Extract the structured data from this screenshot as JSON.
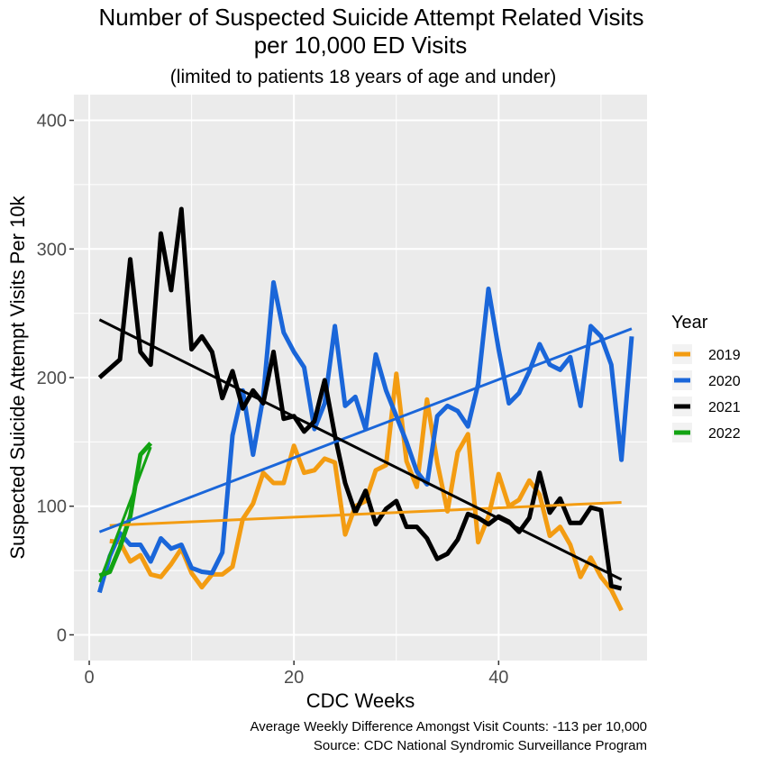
{
  "chart_data": {
    "type": "line",
    "title_line1": "Number of Suspected Suicide Attempt Related Visits",
    "title_line2": "per 10,000 ED Visits",
    "subtitle": "(limited to patients 18 years of age and under)",
    "xlabel": "CDC Weeks",
    "ylabel": "Suspected Suicide Attempt Visits Per 10k",
    "xlim": [
      -1.5,
      54.5
    ],
    "ylim": [
      -20,
      420
    ],
    "x_ticks": [
      0,
      20,
      40
    ],
    "y_ticks": [
      0,
      100,
      200,
      300,
      400
    ],
    "x_tick_labels": [
      "0",
      "20",
      "40"
    ],
    "y_tick_labels": [
      "0",
      "100",
      "200",
      "300",
      "400"
    ],
    "grid": true,
    "legend_title": "Year",
    "legend_position": "right",
    "caption_line1": "Average Weekly Difference Amongst Visit Counts: -113 per 10,000",
    "caption_line2": "Source: CDC National Syndromic Surveillance Program",
    "series": [
      {
        "name": "2019",
        "color": "#F39C12",
        "x": [
          2,
          3,
          4,
          5,
          6,
          7,
          8,
          9,
          10,
          11,
          12,
          13,
          14,
          15,
          16,
          17,
          18,
          19,
          20,
          21,
          22,
          23,
          24,
          25,
          26,
          27,
          28,
          29,
          30,
          31,
          32,
          33,
          34,
          35,
          36,
          37,
          38,
          39,
          40,
          41,
          42,
          43,
          44,
          45,
          46,
          47,
          48,
          49,
          50,
          51,
          52
        ],
        "y": [
          73,
          72,
          57,
          62,
          47,
          45,
          55,
          67,
          48,
          37,
          47,
          47,
          53,
          90,
          102,
          126,
          118,
          118,
          147,
          126,
          128,
          137,
          134,
          78,
          100,
          104,
          128,
          132,
          203,
          135,
          115,
          183,
          134,
          96,
          142,
          156,
          72,
          92,
          125,
          100,
          105,
          120,
          109,
          77,
          84,
          70,
          45,
          60,
          45,
          35,
          19
        ],
        "trend": [
          85,
          103
        ]
      },
      {
        "name": "2020",
        "color": "#1A66D9",
        "x": [
          1,
          2,
          3,
          4,
          5,
          6,
          7,
          8,
          9,
          10,
          11,
          12,
          13,
          14,
          15,
          16,
          17,
          18,
          19,
          20,
          21,
          22,
          23,
          24,
          25,
          26,
          27,
          28,
          29,
          30,
          31,
          32,
          33,
          34,
          35,
          36,
          37,
          38,
          39,
          40,
          41,
          42,
          43,
          44,
          45,
          46,
          47,
          48,
          49,
          50,
          51,
          52,
          53
        ],
        "y": [
          33,
          61,
          79,
          70,
          70,
          57,
          75,
          67,
          70,
          52,
          49,
          48,
          64,
          155,
          190,
          140,
          185,
          274,
          235,
          220,
          208,
          160,
          180,
          240,
          178,
          185,
          160,
          218,
          190,
          170,
          150,
          127,
          117,
          170,
          178,
          174,
          162,
          195,
          269,
          222,
          180,
          188,
          205,
          226,
          210,
          206,
          216,
          178,
          240,
          232,
          210,
          136,
          232
        ],
        "trend": [
          80,
          238
        ]
      },
      {
        "name": "2021",
        "color": "#000000",
        "x": [
          1,
          2,
          3,
          4,
          5,
          6,
          7,
          8,
          9,
          10,
          11,
          12,
          13,
          14,
          15,
          16,
          17,
          18,
          19,
          20,
          21,
          22,
          23,
          24,
          25,
          26,
          27,
          28,
          29,
          30,
          31,
          32,
          33,
          34,
          35,
          36,
          37,
          38,
          39,
          40,
          41,
          42,
          43,
          44,
          45,
          46,
          47,
          48,
          49,
          50,
          51,
          52
        ],
        "y": [
          200,
          207,
          214,
          292,
          220,
          210,
          312,
          268,
          331,
          222,
          232,
          220,
          184,
          205,
          176,
          190,
          180,
          220,
          168,
          170,
          158,
          166,
          198,
          155,
          118,
          95,
          112,
          86,
          98,
          104,
          84,
          84,
          75,
          59,
          63,
          74,
          94,
          91,
          86,
          92,
          88,
          80,
          91,
          126,
          95,
          106,
          87,
          87,
          99,
          97,
          38,
          36
        ],
        "trend": [
          245,
          43
        ]
      },
      {
        "name": "2022",
        "color": "#12A312",
        "x": [
          1,
          2,
          3,
          4,
          5,
          6
        ],
        "y": [
          46,
          49,
          68,
          92,
          140,
          149
        ],
        "trend": [
          41,
          146
        ]
      }
    ]
  }
}
